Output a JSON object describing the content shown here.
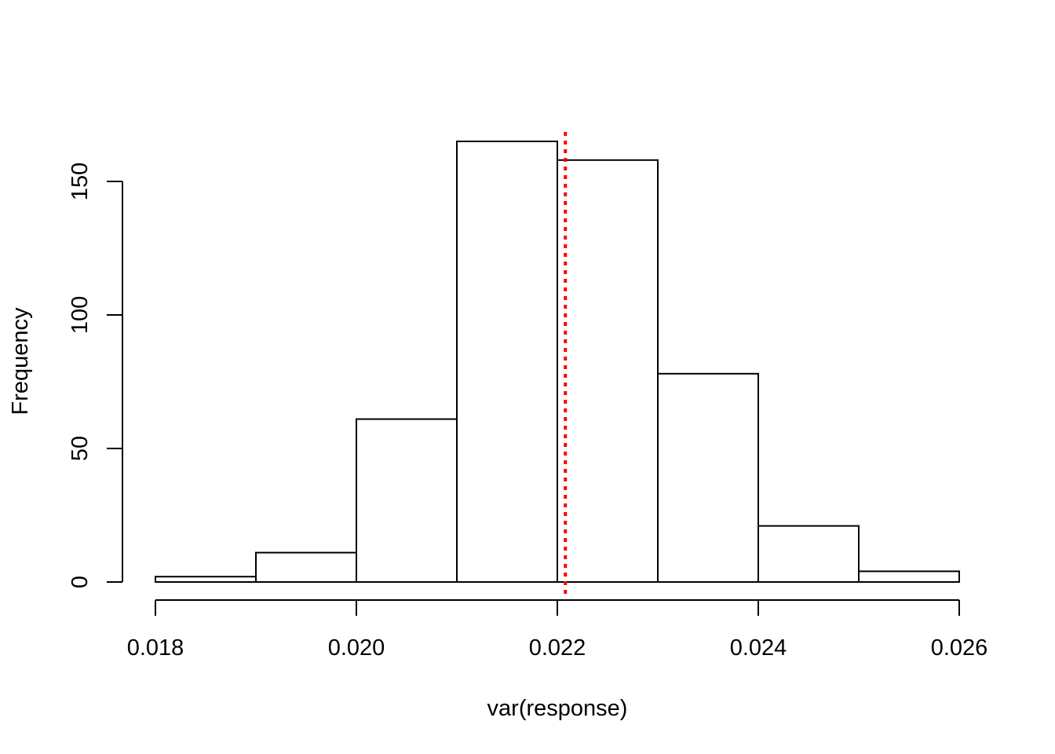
{
  "chart_data": {
    "type": "bar",
    "title": "",
    "xlabel": "var(response)",
    "ylabel": "Frequency",
    "bin_edges": [
      0.018,
      0.019,
      0.02,
      0.021,
      0.022,
      0.023,
      0.024,
      0.025,
      0.026
    ],
    "values": [
      2,
      11,
      61,
      165,
      158,
      78,
      21,
      4
    ],
    "xlim": [
      0.018,
      0.026
    ],
    "ylim": [
      0,
      165
    ],
    "x_ticks": [
      0.018,
      0.02,
      0.022,
      0.024,
      0.026
    ],
    "x_tick_labels": [
      "0.018",
      "0.020",
      "0.022",
      "0.024",
      "0.026"
    ],
    "y_ticks": [
      0,
      50,
      100,
      150
    ],
    "y_tick_labels": [
      "0",
      "50",
      "100",
      "150"
    ],
    "reference_line": {
      "x": 0.02208,
      "color": "#ff0000",
      "style": "dotted"
    },
    "bar_fill": "#ffffff",
    "bar_stroke": "#000000",
    "grid": false,
    "legend": "none"
  }
}
